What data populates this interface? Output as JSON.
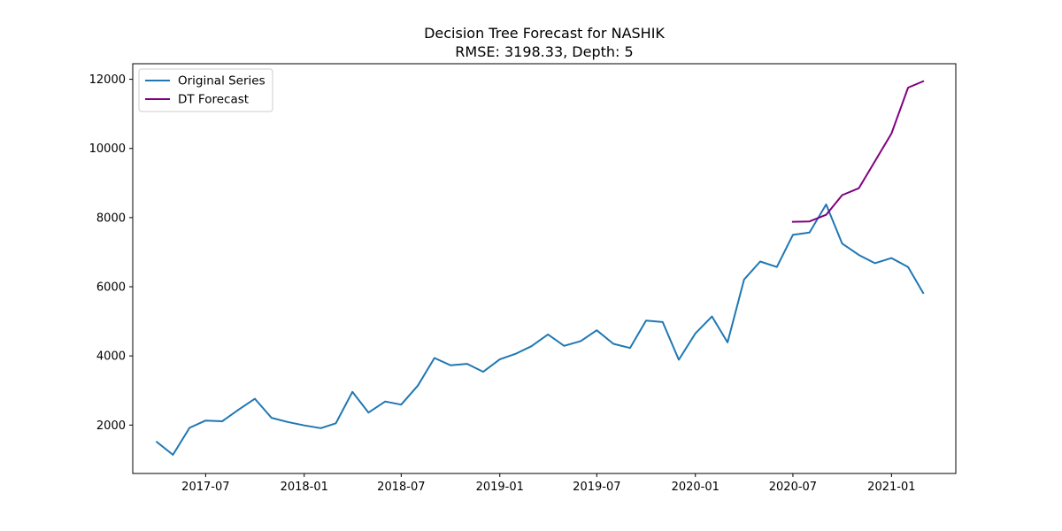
{
  "chart_data": {
    "type": "line",
    "title": "Decision Tree Forecast for NASHIK",
    "subtitle": "RMSE: 3198.33, Depth: 5",
    "xlabel": "",
    "ylabel": "",
    "x_ticks": [
      "2017-07",
      "2018-01",
      "2018-07",
      "2019-01",
      "2019-07",
      "2020-01",
      "2020-07",
      "2021-01"
    ],
    "y_ticks": [
      "2000",
      "4000",
      "6000",
      "8000",
      "10000",
      "12000"
    ],
    "xlim": [
      "2017-02-15",
      "2021-05-01"
    ],
    "ylim": [
      600,
      12450
    ],
    "grid": false,
    "legend_position": "top-left",
    "series": [
      {
        "name": "Original Series",
        "color": "#1f77b4",
        "x": [
          "2017-04",
          "2017-05",
          "2017-06",
          "2017-07",
          "2017-08",
          "2017-09",
          "2017-10",
          "2017-11",
          "2017-12",
          "2018-01",
          "2018-02",
          "2018-03",
          "2018-04",
          "2018-05",
          "2018-06",
          "2018-07",
          "2018-08",
          "2018-09",
          "2018-10",
          "2018-11",
          "2018-12",
          "2019-01",
          "2019-02",
          "2019-03",
          "2019-04",
          "2019-05",
          "2019-06",
          "2019-07",
          "2019-08",
          "2019-09",
          "2019-10",
          "2019-11",
          "2019-12",
          "2020-01",
          "2020-02",
          "2020-03",
          "2020-04",
          "2020-05",
          "2020-06",
          "2020-07",
          "2020-08",
          "2020-09",
          "2020-10",
          "2020-11",
          "2020-12",
          "2021-01",
          "2021-02",
          "2021-03"
        ],
        "values": [
          1510,
          1140,
          1920,
          2130,
          2110,
          2450,
          2760,
          2210,
          2090,
          1990,
          1910,
          2050,
          2960,
          2360,
          2680,
          2590,
          3140,
          3940,
          3730,
          3770,
          3540,
          3900,
          4070,
          4280,
          4620,
          4290,
          4430,
          4740,
          4350,
          4230,
          5020,
          4980,
          3890,
          4650,
          5140,
          4390,
          6210,
          6730,
          6570,
          7500,
          7570,
          8380,
          7250,
          6920,
          6680,
          6830,
          6570,
          5820
        ]
      },
      {
        "name": "DT Forecast",
        "color": "#800080",
        "x": [
          "2020-07",
          "2020-08",
          "2020-09",
          "2020-10",
          "2020-11",
          "2020-12",
          "2021-01",
          "2021-02",
          "2021-03"
        ],
        "values": [
          7880,
          7890,
          8080,
          8650,
          8850,
          9630,
          10430,
          11760,
          11940
        ]
      }
    ]
  }
}
